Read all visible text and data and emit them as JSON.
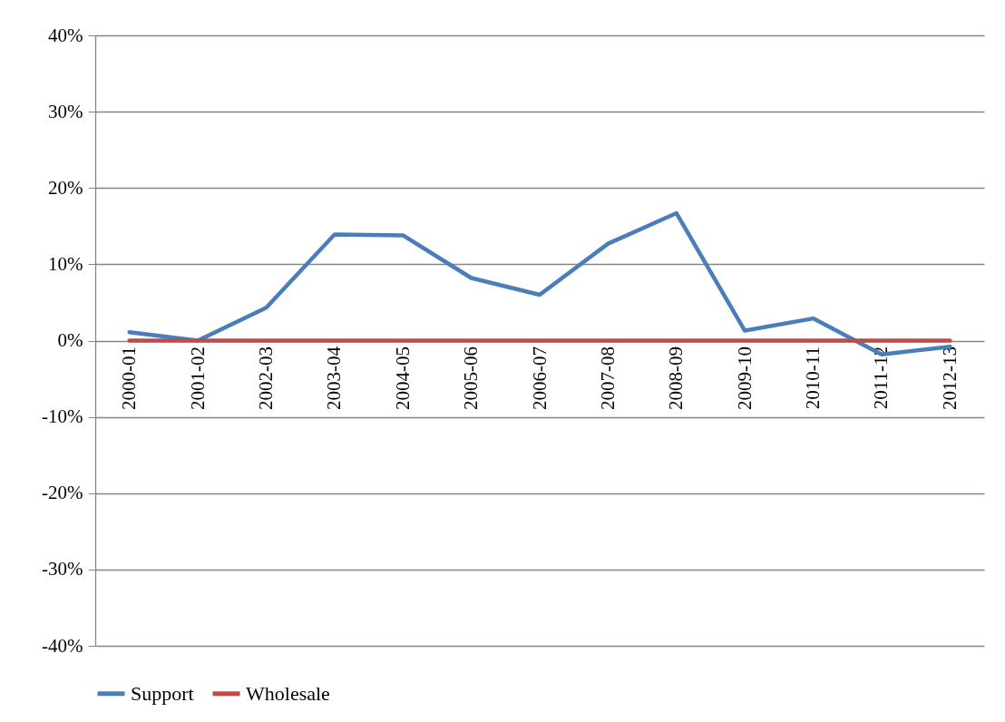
{
  "chart_data": {
    "type": "line",
    "categories": [
      "2000-01",
      "2001-02",
      "2002-03",
      "2003-04",
      "2004-05",
      "2005-06",
      "2006-07",
      "2007-08",
      "2008-09",
      "2009-10",
      "2010-11",
      "2011-12",
      "2012-13"
    ],
    "series": [
      {
        "name": "Support",
        "color": "#4a7ebb",
        "values": [
          1.1,
          0,
          4.3,
          13.9,
          13.8,
          8.2,
          6.0,
          12.7,
          16.7,
          1.3,
          2.9,
          -1.8,
          -0.8
        ]
      },
      {
        "name": "Wholesale",
        "color": "#be4b48",
        "values": [
          0,
          0,
          0,
          0,
          0,
          0,
          0,
          0,
          0,
          0,
          0,
          0,
          0
        ]
      }
    ],
    "ylim": [
      -40,
      40
    ],
    "yticks": [
      {
        "value": -40,
        "label": "-40%"
      },
      {
        "value": -30,
        "label": "-30%"
      },
      {
        "value": -20,
        "label": "-20%"
      },
      {
        "value": -10,
        "label": "-10%"
      },
      {
        "value": 0,
        "label": "0%"
      },
      {
        "value": 10,
        "label": "10%"
      },
      {
        "value": 20,
        "label": "20%"
      },
      {
        "value": 30,
        "label": "30%"
      },
      {
        "value": 40,
        "label": "40%"
      }
    ],
    "grid": "y",
    "legend": "bottom",
    "marker": "none",
    "line_style": "solid"
  }
}
